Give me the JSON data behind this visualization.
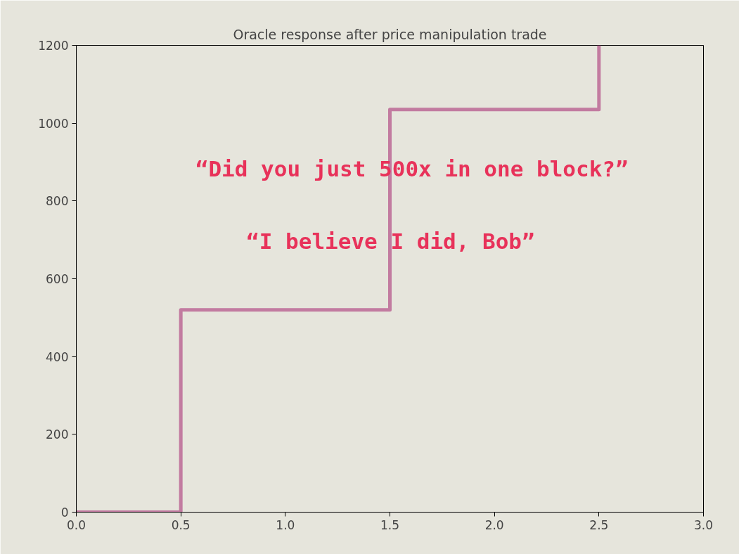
{
  "chart_data": {
    "type": "step",
    "title": "Oracle response after price manipulation trade",
    "x": [
      0,
      0.5,
      1.5,
      2.5
    ],
    "series": [
      {
        "color": "#c27ba0",
        "values": [
          0,
          520,
          1035,
          1200
        ]
      }
    ],
    "xlim": [
      0,
      3
    ],
    "xticks": [
      {
        "value": 0,
        "label": "0.0"
      },
      {
        "value": 0.5,
        "label": "0.5"
      },
      {
        "value": 1,
        "label": "1.0"
      },
      {
        "value": 1.5,
        "label": "1.5"
      },
      {
        "value": 2,
        "label": "2.0"
      },
      {
        "value": 2.5,
        "label": "2.5"
      },
      {
        "value": 3,
        "label": "3.0"
      }
    ],
    "ylim": [
      0,
      1200
    ],
    "yticks": [
      0,
      200,
      400,
      600,
      800,
      1000,
      1200
    ],
    "grid": false,
    "annotations": [
      "“Did you just 500x in one block?”",
      "“I believe I did, Bob”"
    ]
  }
}
